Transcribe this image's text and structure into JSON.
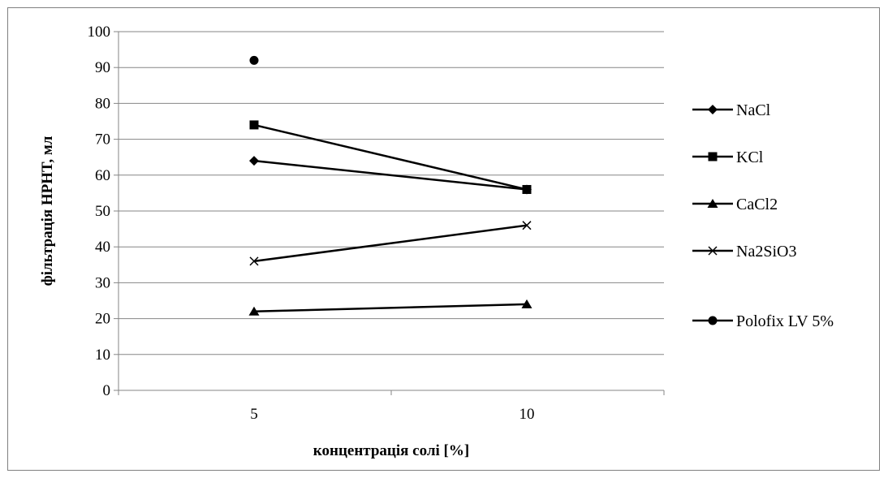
{
  "chart_data": {
    "type": "line",
    "categories": [
      "5",
      "10"
    ],
    "xlabel": "концентрація солі [%]",
    "ylabel": "фільтрація HPHT, мл",
    "ylim": [
      0,
      100
    ],
    "ystep": 10,
    "yticks": [
      "0",
      "10",
      "20",
      "30",
      "40",
      "50",
      "60",
      "70",
      "80",
      "90",
      "100"
    ],
    "grid": true,
    "legend_position": "right",
    "series": [
      {
        "name": "NaCl",
        "marker": "diamond",
        "values": [
          64,
          56
        ]
      },
      {
        "name": "KCl",
        "marker": "square",
        "values": [
          74,
          56
        ]
      },
      {
        "name": "CaCl2",
        "marker": "triangle",
        "values": [
          22,
          24
        ]
      },
      {
        "name": "Na2SiO3",
        "marker": "cross",
        "values": [
          36,
          46
        ]
      },
      {
        "name": "Polofix LV 5%",
        "marker": "circle",
        "values": [
          92,
          null
        ]
      }
    ],
    "colors": {
      "line": "#000000",
      "grid": "#868686",
      "axis": "#868686"
    }
  }
}
